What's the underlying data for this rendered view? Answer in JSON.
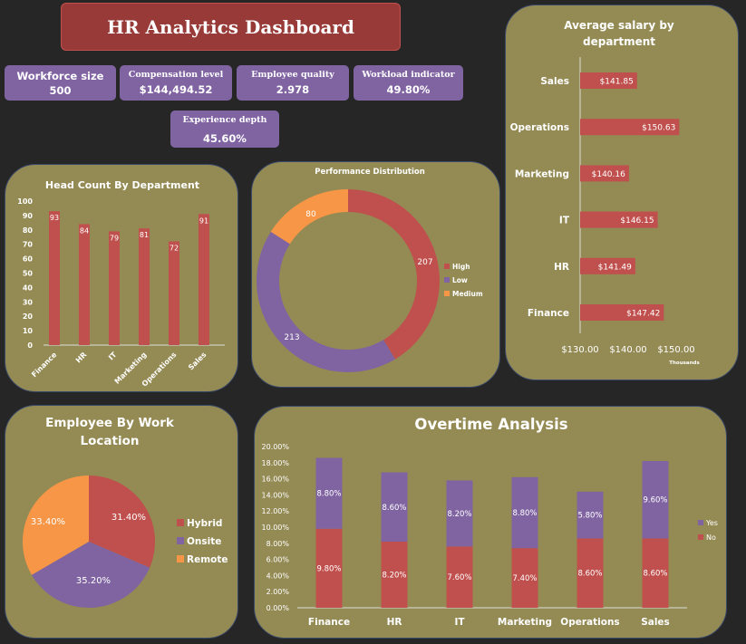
{
  "header": {
    "title": "HR Analytics Dashboard"
  },
  "kpis": [
    {
      "label": "Workforce size",
      "value": "500"
    },
    {
      "label": "Compensation level",
      "value": "$144,494.52"
    },
    {
      "label": "Employee quality",
      "value": "2.978"
    },
    {
      "label": "Workload indicator",
      "value": "49.80%"
    },
    {
      "label": "Experience depth",
      "value": "45.60%"
    }
  ],
  "colors": {
    "background": "#262626",
    "panel": "#948a54",
    "title": "#973a38",
    "red": "#c0504d",
    "purple": "#8064a2",
    "orange": "#f79646"
  },
  "chart_data": [
    {
      "id": "headcount",
      "type": "bar",
      "title": "Head Count By Department",
      "categories": [
        "Finance",
        "HR",
        "IT",
        "Marketing",
        "Operations",
        "Sales"
      ],
      "values": [
        93,
        84,
        79,
        81,
        72,
        91
      ],
      "ylim": [
        0,
        100
      ],
      "yticks": [
        "0",
        "10",
        "20",
        "30",
        "40",
        "50",
        "60",
        "70",
        "80",
        "90",
        "100"
      ],
      "grid": false
    },
    {
      "id": "performance",
      "type": "pie",
      "subtype": "donut",
      "title": "Performance Distribution",
      "categories": [
        "High",
        "Low",
        "Medium"
      ],
      "values": [
        207,
        213,
        80
      ],
      "legend": "right"
    },
    {
      "id": "salary",
      "type": "bar",
      "orientation": "horizontal",
      "title": "Average salary by department",
      "categories": [
        "Sales",
        "Operations",
        "Marketing",
        "IT",
        "HR",
        "Finance"
      ],
      "values": [
        141.85,
        150.63,
        140.16,
        146.15,
        141.49,
        147.42
      ],
      "value_labels": [
        "$141.85",
        "$150.63",
        "$140.16",
        "$146.15",
        "$141.49",
        "$147.42"
      ],
      "xlim": [
        130,
        150
      ],
      "xticks": [
        "$130.00",
        "$140.00",
        "$150.00"
      ],
      "xunit": "Thousands",
      "grid": false
    },
    {
      "id": "location",
      "type": "pie",
      "title": "Employee By Work Location",
      "categories": [
        "Hybrid",
        "Onsite",
        "Remote"
      ],
      "values": [
        31.4,
        35.2,
        33.4
      ],
      "value_labels": [
        "31.40%",
        "35.20%",
        "33.40%"
      ],
      "legend": "right"
    },
    {
      "id": "overtime",
      "type": "bar",
      "stacked": true,
      "title": "Overtime Analysis",
      "categories": [
        "Finance",
        "HR",
        "IT",
        "Marketing",
        "Operations",
        "Sales"
      ],
      "series": [
        {
          "name": "No",
          "values": [
            9.8,
            8.2,
            7.6,
            7.4,
            8.6,
            8.6
          ],
          "labels": [
            "9.80%",
            "8.20%",
            "7.60%",
            "7.40%",
            "8.60%",
            "8.60%"
          ]
        },
        {
          "name": "Yes",
          "values": [
            8.8,
            8.6,
            8.2,
            8.8,
            5.8,
            9.6
          ],
          "labels": [
            "8.80%",
            "8.60%",
            "8.20%",
            "8.80%",
            "5.80%",
            "9.60%"
          ]
        }
      ],
      "ylim": [
        0,
        20
      ],
      "yticks": [
        "0.00%",
        "2.00%",
        "4.00%",
        "6.00%",
        "8.00%",
        "10.00%",
        "12.00%",
        "14.00%",
        "16.00%",
        "18.00%",
        "20.00%"
      ],
      "legend": "right",
      "grid": false
    }
  ]
}
